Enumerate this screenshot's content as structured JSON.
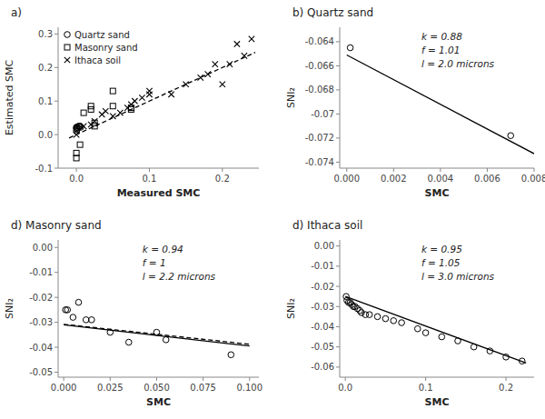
{
  "chart_data": [
    {
      "type": "scatter",
      "title": "a)",
      "x_label": "Measured SMC",
      "y_label": "Estimated SMC",
      "xlim": [
        -0.025,
        0.25
      ],
      "ylim": [
        -0.1,
        0.32
      ],
      "xticks": [
        {
          "value": 0.0,
          "label": "0.0"
        },
        0.1,
        0.2
      ],
      "yticks": [
        -0.1,
        {
          "value": 0.0,
          "label": "0.0"
        },
        0.1,
        0.2,
        0.3
      ],
      "legend": "upper left",
      "series": [
        {
          "name": "Quartz sand",
          "type": "scatter",
          "marker": "circle",
          "color": "black",
          "x": [
            0.0,
            0.0,
            0.0,
            0.001,
            0.001,
            0.002,
            0.003,
            0.004,
            0.005,
            0.006
          ],
          "values": [
            0.01,
            0.018,
            0.022,
            0.015,
            0.022,
            0.02,
            0.025,
            0.025,
            0.025,
            0.022
          ]
        },
        {
          "name": "Masonry sand",
          "type": "scatter",
          "marker": "square",
          "color": "black",
          "x": [
            0.0,
            0.0,
            0.005,
            0.01,
            0.02,
            0.02,
            0.025,
            0.025,
            0.05,
            0.05,
            0.075,
            0.075
          ],
          "values": [
            -0.07,
            -0.055,
            -0.03,
            0.065,
            0.085,
            0.075,
            0.025,
            0.035,
            0.13,
            0.085,
            0.08,
            0.075
          ]
        },
        {
          "name": "Ithaca soil",
          "type": "scatter",
          "marker": "x",
          "color": "black",
          "x": [
            0.0,
            0.01,
            0.02,
            0.025,
            0.035,
            0.04,
            0.05,
            0.06,
            0.07,
            0.075,
            0.08,
            0.09,
            0.1,
            0.1,
            0.13,
            0.15,
            0.17,
            0.18,
            0.19,
            0.2,
            0.21,
            0.22,
            0.23,
            0.24
          ],
          "values": [
            0.0,
            0.025,
            0.03,
            0.04,
            0.06,
            0.07,
            0.055,
            0.065,
            0.08,
            0.09,
            0.1,
            0.11,
            0.12,
            0.13,
            0.12,
            0.15,
            0.17,
            0.18,
            0.21,
            0.15,
            0.21,
            0.27,
            0.235,
            0.285
          ]
        },
        {
          "type": "line",
          "line_style": "dashed",
          "color": "black",
          "x": [
            -0.01,
            0.245
          ],
          "values": [
            -0.01,
            0.245
          ]
        }
      ]
    },
    {
      "type": "scatter",
      "title": "b) Quartz sand",
      "x_label": "SMC",
      "y_label": "SNI₂",
      "xlim": [
        -0.0003,
        0.008
      ],
      "ylim": [
        -0.0745,
        -0.0628
      ],
      "xticks": [
        {
          "value": 0.0,
          "label": "0.000"
        },
        0.002,
        0.004,
        0.006,
        0.008
      ],
      "yticks": [
        -0.074,
        -0.072,
        -0.07,
        -0.068,
        -0.066,
        -0.064
      ],
      "annotation": "k = 0.88\nf = 1.01\nl = 2.0 microns",
      "series": [
        {
          "type": "line",
          "line_style": "solid",
          "color": "black",
          "x": [
            0.0,
            0.008
          ],
          "values": [
            -0.0651,
            -0.0733
          ]
        },
        {
          "type": "scatter",
          "marker": "circle",
          "color": "black",
          "x": [
            0.00015,
            0.007
          ],
          "values": [
            -0.0645,
            -0.0718
          ]
        }
      ]
    },
    {
      "type": "scatter",
      "title": "d) Masonry sand",
      "x_label": "SMC",
      "y_label": "SNI₂",
      "xlim": [
        -0.003,
        0.105
      ],
      "ylim": [
        -0.052,
        0.003
      ],
      "xticks": [
        {
          "value": 0.0,
          "label": "0.000"
        },
        0.025,
        {
          "value": 0.05,
          "label": "0.050"
        },
        0.075,
        {
          "value": 0.1,
          "label": "0.100"
        }
      ],
      "yticks": [
        {
          "value": 0.0,
          "label": "0.00"
        },
        -0.01,
        -0.02,
        -0.03,
        -0.04,
        -0.05
      ],
      "annotation": "k = 0.94\nf = 1\nl = 2.2 microns",
      "series": [
        {
          "type": "scatter",
          "marker": "circle",
          "color": "black",
          "x": [
            0.001,
            0.002,
            0.005,
            0.008,
            0.012,
            0.015,
            0.025,
            0.035,
            0.05,
            0.055,
            0.09
          ],
          "values": [
            -0.025,
            -0.025,
            -0.028,
            -0.022,
            -0.029,
            -0.029,
            -0.034,
            -0.038,
            -0.034,
            -0.037,
            -0.043
          ]
        },
        {
          "type": "line",
          "line_style": "solid",
          "color": "black",
          "x": [
            0.0,
            0.1
          ],
          "values": [
            -0.031,
            -0.0395
          ]
        },
        {
          "type": "line",
          "line_style": "dashed",
          "color": "black",
          "x": [
            0.0,
            0.1
          ],
          "values": [
            -0.0308,
            -0.0388
          ]
        }
      ]
    },
    {
      "type": "scatter",
      "title": "d) Ithaca soil",
      "x_label": "SMC",
      "y_label": "SNI₂",
      "xlim": [
        -0.007,
        0.235
      ],
      "ylim": [
        -0.065,
        0.003
      ],
      "xticks": [
        {
          "value": 0.0,
          "label": "0.0"
        },
        0.1,
        0.2
      ],
      "yticks": [
        {
          "value": 0.0,
          "label": "0.00"
        },
        -0.01,
        -0.02,
        -0.03,
        -0.04,
        -0.05,
        -0.06
      ],
      "annotation": "k = 0.95\nf = 1.05\nl = 3.0 microns",
      "series": [
        {
          "type": "scatter",
          "marker": "circle",
          "color": "black",
          "x": [
            0.001,
            0.002,
            0.004,
            0.006,
            0.008,
            0.01,
            0.012,
            0.015,
            0.018,
            0.02,
            0.025,
            0.03,
            0.04,
            0.05,
            0.06,
            0.07,
            0.09,
            0.1,
            0.12,
            0.14,
            0.16,
            0.18,
            0.2,
            0.22
          ],
          "values": [
            -0.025,
            -0.027,
            -0.028,
            -0.028,
            -0.029,
            -0.03,
            -0.03,
            -0.031,
            -0.032,
            -0.033,
            -0.034,
            -0.034,
            -0.035,
            -0.036,
            -0.037,
            -0.038,
            -0.041,
            -0.043,
            -0.045,
            -0.047,
            -0.05,
            -0.052,
            -0.055,
            -0.057
          ]
        },
        {
          "type": "line",
          "line_style": "solid",
          "color": "black",
          "x": [
            0.0,
            0.225
          ],
          "values": [
            -0.025,
            -0.058
          ]
        }
      ]
    }
  ]
}
